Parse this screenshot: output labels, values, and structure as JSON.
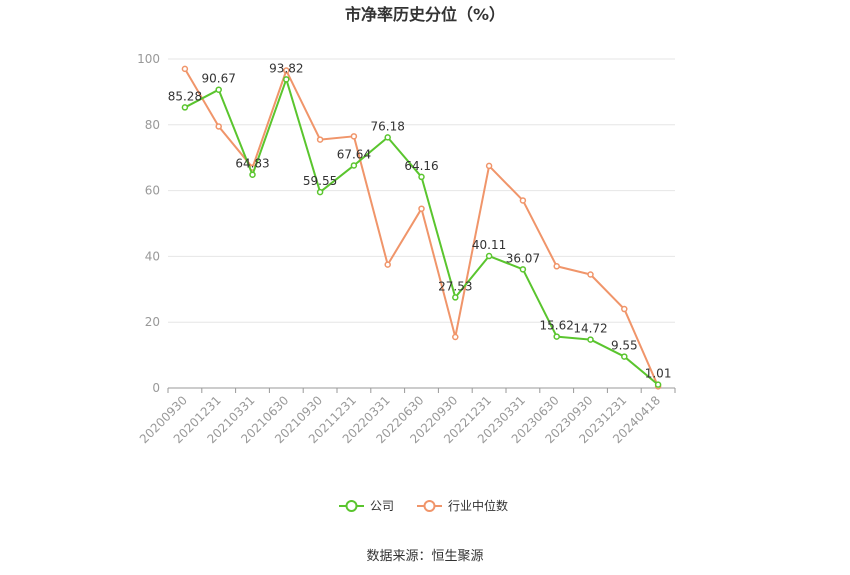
{
  "chart_data": {
    "type": "line",
    "title": "市净率历史分位（%）",
    "categories": [
      "20200930",
      "20201231",
      "20210331",
      "20210630",
      "20210930",
      "20211231",
      "20220331",
      "20220630",
      "20220930",
      "20221231",
      "20230331",
      "20230630",
      "20230930",
      "20231231",
      "20240418"
    ],
    "ylim": [
      0,
      100
    ],
    "yticks": [
      0,
      20,
      40,
      60,
      80,
      100
    ],
    "grid": true,
    "legend_position": "bottom-center",
    "series": [
      {
        "name": "公司",
        "color": "#5ac52e",
        "values": [
          85.28,
          90.67,
          64.83,
          93.82,
          59.55,
          67.64,
          76.18,
          64.16,
          27.53,
          40.11,
          36.07,
          15.62,
          14.72,
          9.55,
          1.01
        ],
        "labels": [
          "85.28",
          "90.67",
          "64.83",
          "93.82",
          "59.55",
          "67.64",
          "76.18",
          "64.16",
          "27.53",
          "40.11",
          "36.07",
          "15.62",
          "14.72",
          "9.55",
          "1.01"
        ]
      },
      {
        "name": "行业中位数",
        "color": "#f0956a",
        "values": [
          97,
          79.5,
          67,
          96.5,
          75.5,
          76.5,
          37.5,
          54.5,
          15.5,
          67.5,
          57,
          37,
          34.5,
          24,
          0.5
        ]
      }
    ]
  },
  "footer": {
    "source": "数据来源：恒生聚源"
  }
}
